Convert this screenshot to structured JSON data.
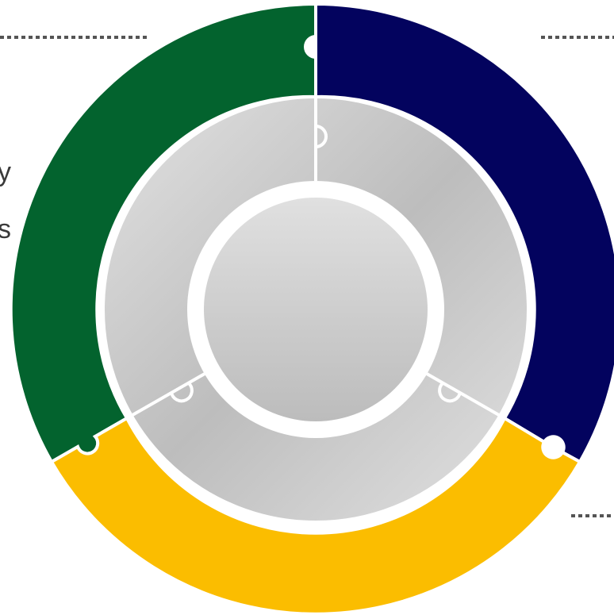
{
  "diagram": {
    "colors": {
      "segment_green": "#03632e",
      "segment_navy": "#03035e",
      "segment_yellow": "#fbbd00",
      "inner_ring_light": "#e2e2e2",
      "inner_ring_dark": "#bdbdbd",
      "center_light": "#e0e0e0",
      "center_dark": "#bcbcbc",
      "separator": "#ffffff",
      "leader_line": "#555555"
    },
    "segments": [
      {
        "id": "green",
        "color_key": "segment_green"
      },
      {
        "id": "navy",
        "color_key": "segment_navy"
      },
      {
        "id": "yellow",
        "color_key": "segment_yellow"
      }
    ],
    "cut_off_text": [
      "y",
      "s"
    ]
  }
}
